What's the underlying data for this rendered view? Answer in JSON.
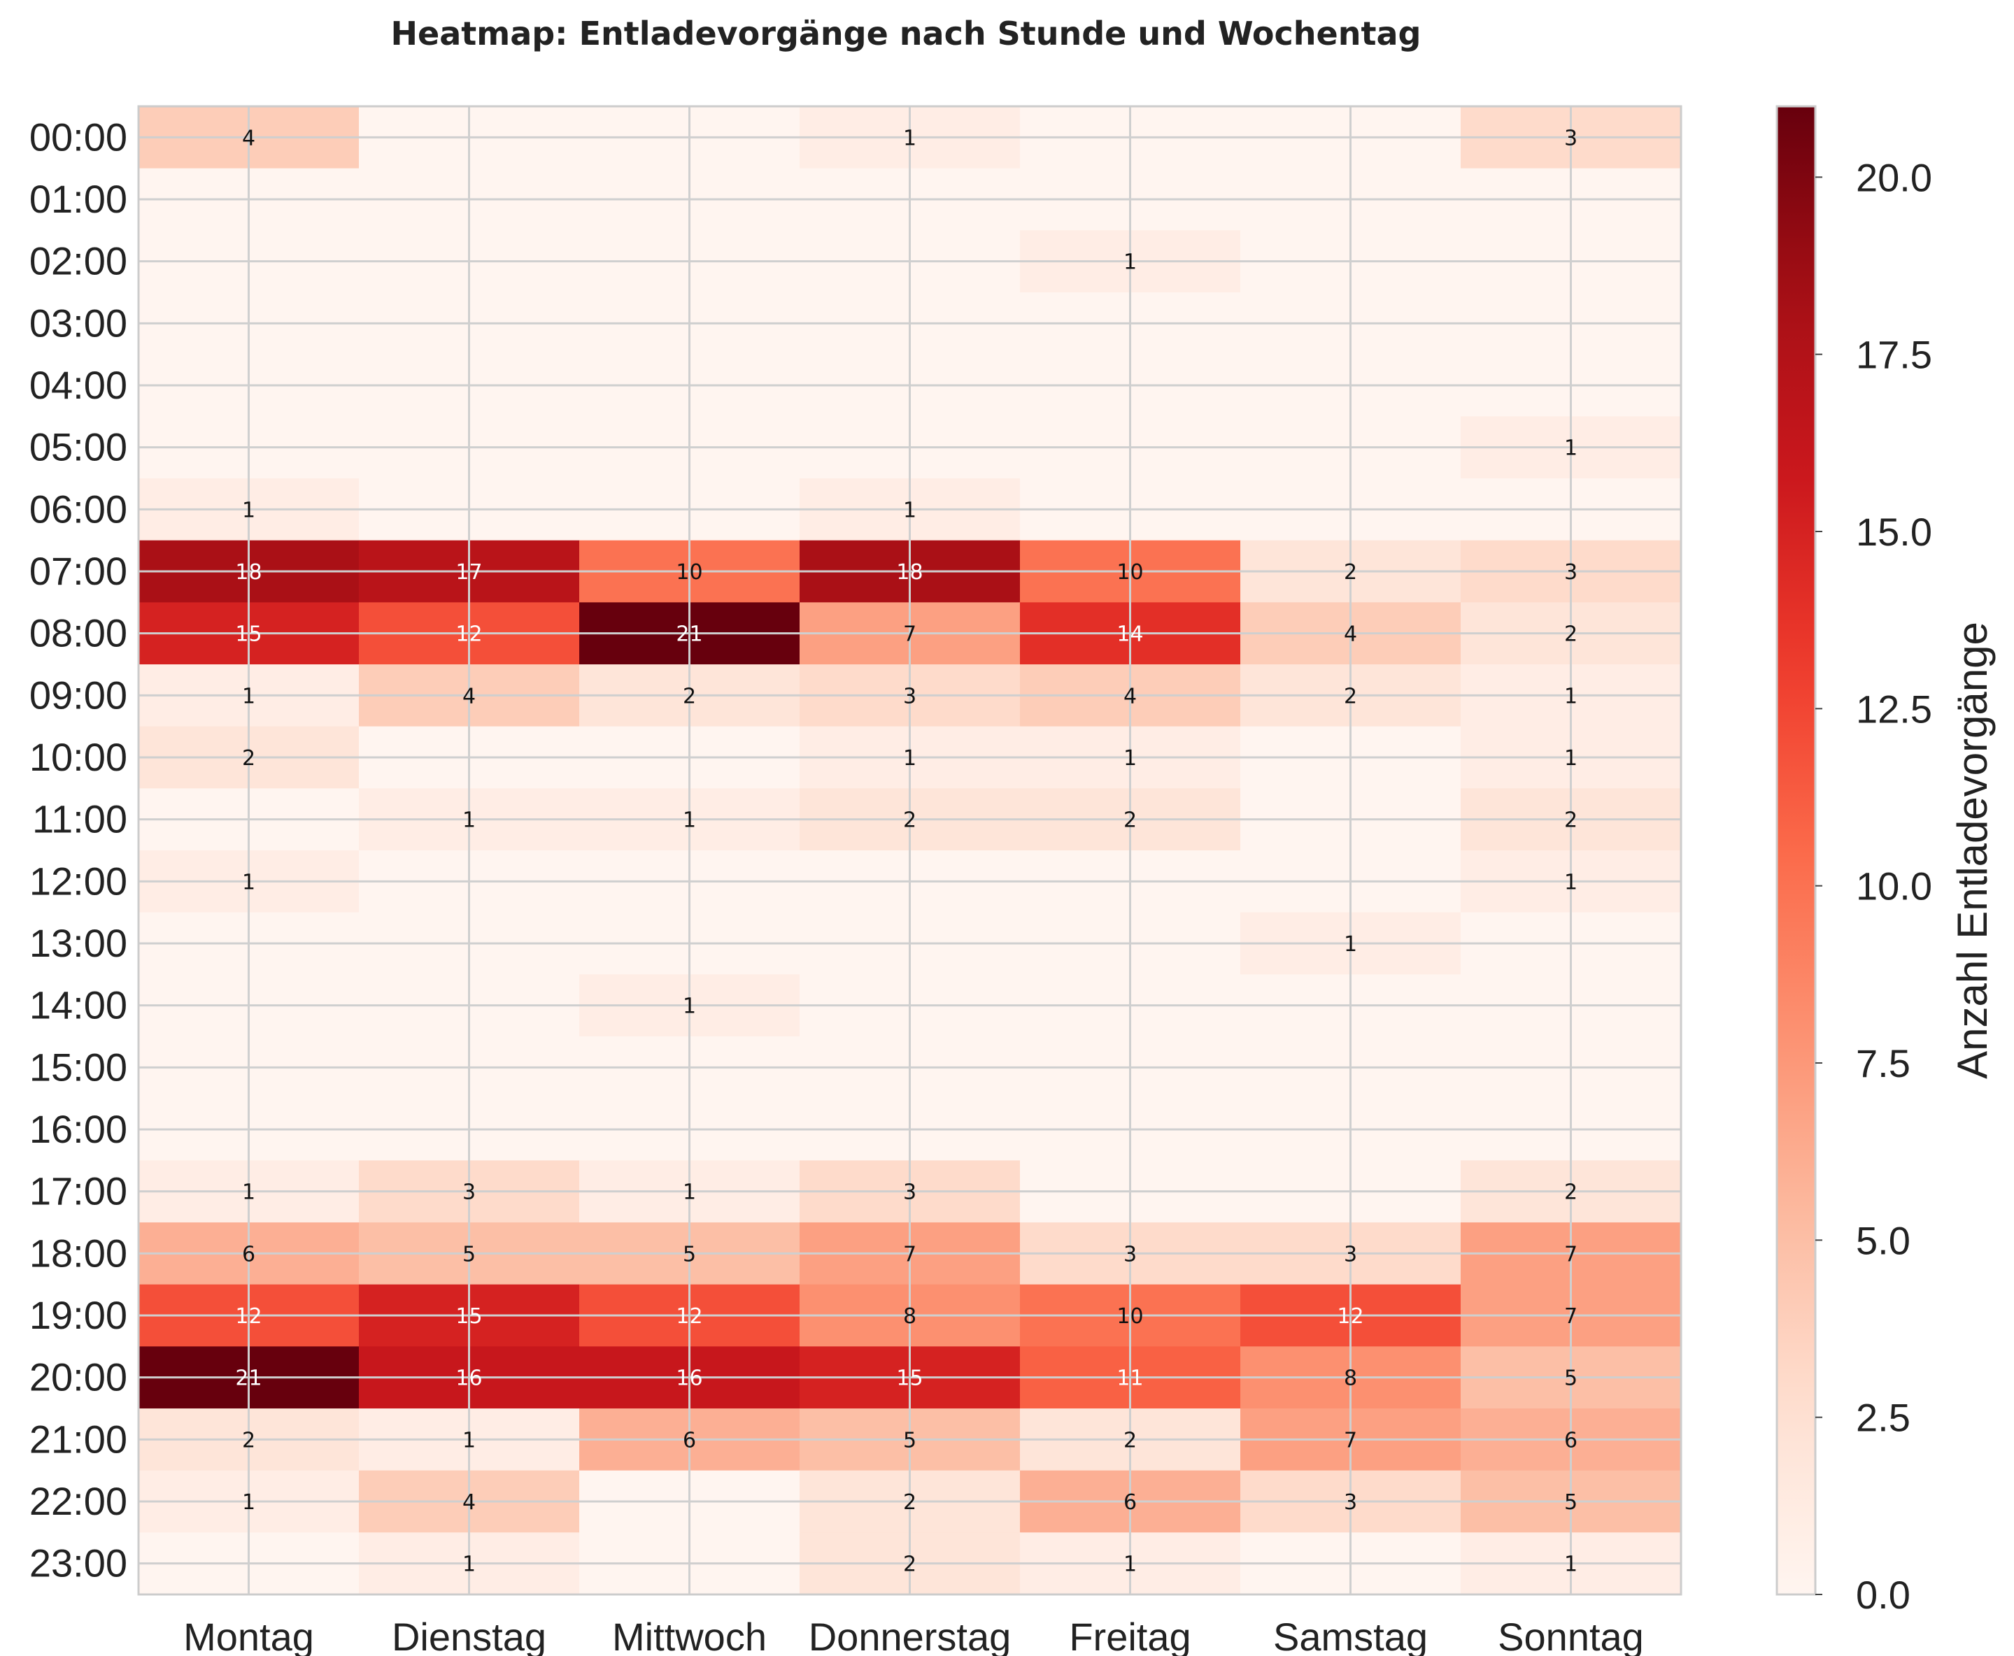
{
  "chart_data": {
    "type": "heatmap",
    "title": "Heatmap: Entladevorgänge nach Stunde und Wochentag",
    "x_categories": [
      "Montag",
      "Dienstag",
      "Mittwoch",
      "Donnerstag",
      "Freitag",
      "Samstag",
      "Sonntag"
    ],
    "y_categories": [
      "00:00",
      "01:00",
      "02:00",
      "03:00",
      "04:00",
      "05:00",
      "06:00",
      "07:00",
      "08:00",
      "09:00",
      "10:00",
      "11:00",
      "12:00",
      "13:00",
      "14:00",
      "15:00",
      "16:00",
      "17:00",
      "18:00",
      "19:00",
      "20:00",
      "21:00",
      "22:00",
      "23:00"
    ],
    "values": [
      [
        4,
        0,
        0,
        1,
        0,
        0,
        3
      ],
      [
        0,
        0,
        0,
        0,
        0,
        0,
        0
      ],
      [
        0,
        0,
        0,
        0,
        1,
        0,
        0
      ],
      [
        0,
        0,
        0,
        0,
        0,
        0,
        0
      ],
      [
        0,
        0,
        0,
        0,
        0,
        0,
        0
      ],
      [
        0,
        0,
        0,
        0,
        0,
        0,
        1
      ],
      [
        1,
        0,
        0,
        1,
        0,
        0,
        0
      ],
      [
        18,
        17,
        10,
        18,
        10,
        2,
        3
      ],
      [
        15,
        12,
        21,
        7,
        14,
        4,
        2
      ],
      [
        1,
        4,
        2,
        3,
        4,
        2,
        1
      ],
      [
        2,
        0,
        0,
        1,
        1,
        0,
        1
      ],
      [
        0,
        1,
        1,
        2,
        2,
        0,
        2
      ],
      [
        1,
        0,
        0,
        0,
        0,
        0,
        1
      ],
      [
        0,
        0,
        0,
        0,
        0,
        1,
        0
      ],
      [
        0,
        0,
        1,
        0,
        0,
        0,
        0
      ],
      [
        0,
        0,
        0,
        0,
        0,
        0,
        0
      ],
      [
        0,
        0,
        0,
        0,
        0,
        0,
        0
      ],
      [
        1,
        3,
        1,
        3,
        0,
        0,
        2
      ],
      [
        6,
        5,
        5,
        7,
        3,
        3,
        7
      ],
      [
        12,
        15,
        12,
        8,
        10,
        12,
        7
      ],
      [
        21,
        16,
        16,
        15,
        11,
        8,
        5
      ],
      [
        2,
        1,
        6,
        5,
        2,
        7,
        6
      ],
      [
        1,
        4,
        0,
        2,
        6,
        3,
        5
      ],
      [
        0,
        1,
        0,
        2,
        1,
        0,
        1
      ]
    ],
    "colorbar": {
      "label": "Anzahl Entladevorgänge",
      "range": [
        0,
        21
      ],
      "ticks": [
        "0.0",
        "2.5",
        "5.0",
        "7.5",
        "10.0",
        "12.5",
        "15.0",
        "17.5",
        "20.0"
      ]
    },
    "colormap": "Reds",
    "grid": true
  }
}
